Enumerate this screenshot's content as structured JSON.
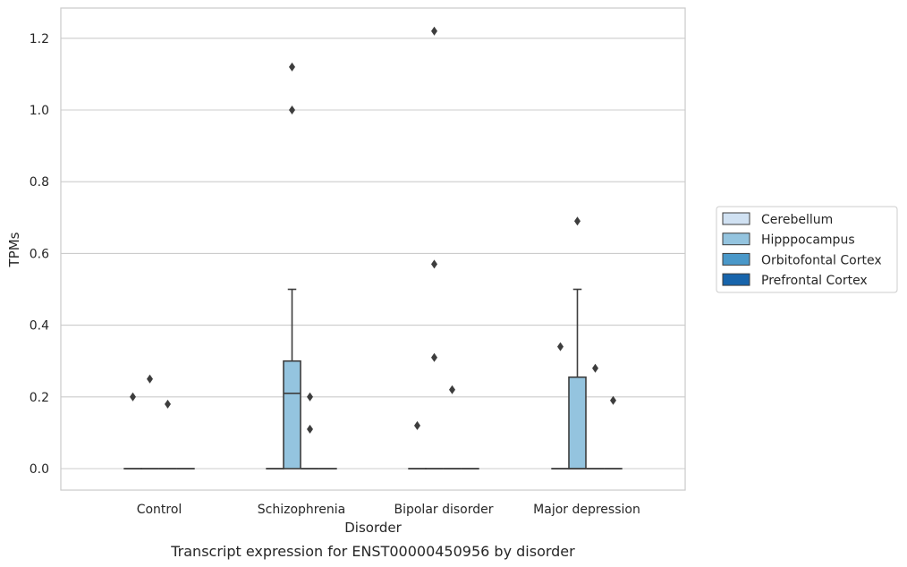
{
  "chart_data": {
    "type": "box",
    "caption": "Transcript expression for ENST00000450956 by disorder",
    "xlabel": "Disorder",
    "ylabel": "TPMs",
    "ylim": [
      -0.06,
      1.28
    ],
    "yticks": [
      0.0,
      0.2,
      0.4,
      0.6,
      0.8,
      1.0,
      1.2
    ],
    "ytick_labels": [
      "0.0",
      "0.2",
      "0.4",
      "0.6",
      "0.8",
      "1.0",
      "1.2"
    ],
    "categories": [
      "Control",
      "Schizophrenia",
      "Bipolar disorder",
      "Major depression"
    ],
    "grid": "horizontal",
    "legend_position": "right",
    "legend_entries": [
      {
        "name": "Cerebellum",
        "color": "#d0e1f2"
      },
      {
        "name": "Hipppocampus",
        "color": "#94c4df"
      },
      {
        "name": "Orbitofontal Cortex",
        "color": "#4a98c9"
      },
      {
        "name": "Prefrontal Cortex",
        "color": "#1764ab"
      }
    ],
    "boxes": [
      {
        "category": "Control",
        "series": "Cerebellum",
        "q1": 0.0,
        "median": 0.0,
        "q3": 0.0,
        "whisker_low": 0.0,
        "whisker_high": 0.0,
        "outliers": [
          0.2
        ]
      },
      {
        "category": "Control",
        "series": "Hipppocampus",
        "q1": 0.0,
        "median": 0.0,
        "q3": 0.0,
        "whisker_low": 0.0,
        "whisker_high": 0.0,
        "outliers": [
          0.25
        ]
      },
      {
        "category": "Control",
        "series": "Orbitofontal Cortex",
        "q1": 0.0,
        "median": 0.0,
        "q3": 0.0,
        "whisker_low": 0.0,
        "whisker_high": 0.0,
        "outliers": [
          0.18
        ]
      },
      {
        "category": "Control",
        "series": "Prefrontal Cortex",
        "q1": 0.0,
        "median": 0.0,
        "q3": 0.0,
        "whisker_low": 0.0,
        "whisker_high": 0.0,
        "outliers": []
      },
      {
        "category": "Schizophrenia",
        "series": "Cerebellum",
        "q1": 0.0,
        "median": 0.0,
        "q3": 0.0,
        "whisker_low": 0.0,
        "whisker_high": 0.0,
        "outliers": []
      },
      {
        "category": "Schizophrenia",
        "series": "Hipppocampus",
        "q1": 0.0,
        "median": 0.21,
        "q3": 0.3,
        "whisker_low": 0.0,
        "whisker_high": 0.5,
        "outliers": [
          1.0,
          1.12
        ]
      },
      {
        "category": "Schizophrenia",
        "series": "Orbitofontal Cortex",
        "q1": 0.0,
        "median": 0.0,
        "q3": 0.0,
        "whisker_low": 0.0,
        "whisker_high": 0.0,
        "outliers": [
          0.2,
          0.11
        ]
      },
      {
        "category": "Schizophrenia",
        "series": "Prefrontal Cortex",
        "q1": 0.0,
        "median": 0.0,
        "q3": 0.0,
        "whisker_low": 0.0,
        "whisker_high": 0.0,
        "outliers": []
      },
      {
        "category": "Bipolar disorder",
        "series": "Cerebellum",
        "q1": 0.0,
        "median": 0.0,
        "q3": 0.0,
        "whisker_low": 0.0,
        "whisker_high": 0.0,
        "outliers": [
          0.12
        ]
      },
      {
        "category": "Bipolar disorder",
        "series": "Hipppocampus",
        "q1": 0.0,
        "median": 0.0,
        "q3": 0.0,
        "whisker_low": 0.0,
        "whisker_high": 0.0,
        "outliers": [
          1.22,
          0.57,
          0.31
        ]
      },
      {
        "category": "Bipolar disorder",
        "series": "Orbitofontal Cortex",
        "q1": 0.0,
        "median": 0.0,
        "q3": 0.0,
        "whisker_low": 0.0,
        "whisker_high": 0.0,
        "outliers": [
          0.22
        ]
      },
      {
        "category": "Bipolar disorder",
        "series": "Prefrontal Cortex",
        "q1": 0.0,
        "median": 0.0,
        "q3": 0.0,
        "whisker_low": 0.0,
        "whisker_high": 0.0,
        "outliers": []
      },
      {
        "category": "Major depression",
        "series": "Cerebellum",
        "q1": 0.0,
        "median": 0.0,
        "q3": 0.0,
        "whisker_low": 0.0,
        "whisker_high": 0.0,
        "outliers": [
          0.34
        ]
      },
      {
        "category": "Major depression",
        "series": "Hipppocampus",
        "q1": 0.0,
        "median": 0.0,
        "q3": 0.255,
        "whisker_low": 0.0,
        "whisker_high": 0.5,
        "outliers": [
          0.69
        ]
      },
      {
        "category": "Major depression",
        "series": "Orbitofontal Cortex",
        "q1": 0.0,
        "median": 0.0,
        "q3": 0.0,
        "whisker_low": 0.0,
        "whisker_high": 0.0,
        "outliers": [
          0.28
        ]
      },
      {
        "category": "Major depression",
        "series": "Prefrontal Cortex",
        "q1": 0.0,
        "median": 0.0,
        "q3": 0.0,
        "whisker_low": 0.0,
        "whisker_high": 0.0,
        "outliers": [
          0.19
        ]
      }
    ]
  }
}
